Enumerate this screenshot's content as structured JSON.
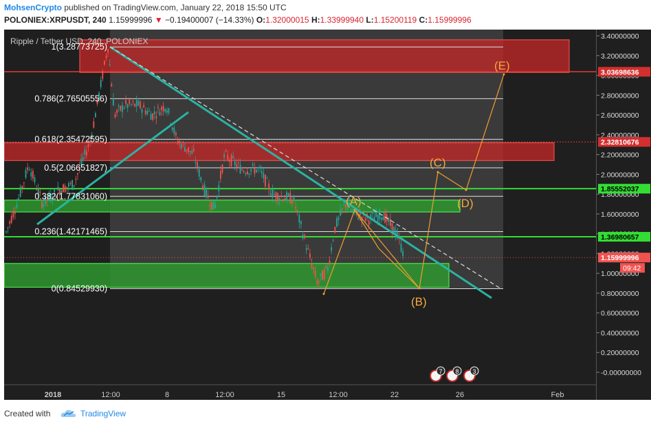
{
  "header": {
    "author": "MohsenCrypto",
    "published": "published on TradingView.com, January 22, 2018 15:50 UTC",
    "symbol": "POLONIEX:XRPUSDT, 240",
    "last": "1.15999996",
    "change": "−0.19400007 (−14.33%)",
    "o_label": "O:",
    "o_value": "1.32000015",
    "h_label": "H:",
    "h_value": "1.33999940",
    "l_label": "L:",
    "l_value": "1.15200119",
    "c_label": "C:",
    "c_value": "1.15999996"
  },
  "chart": {
    "legend": "Ripple / Tether USD, 240, POLONIEX",
    "fib_labels": [
      {
        "label": "1(3.28773725)",
        "price": 3.28773725
      },
      {
        "label": "0.786(2.76505556)",
        "price": 2.76505556
      },
      {
        "label": "0.618(2.35472595)",
        "price": 2.35472595
      },
      {
        "label": "0.5(2.06651827)",
        "price": 2.06651827
      },
      {
        "label": "0.382(1.77831060)",
        "price": 1.7783106
      },
      {
        "label": "0.236(1.42171465)",
        "price": 1.42171465
      },
      {
        "label": "0(0.84529930)",
        "price": 0.8452993
      }
    ],
    "wave_labels": [
      "(A)",
      "(B)",
      "(C)",
      "(D)",
      "(E)"
    ],
    "time_labels": [
      "2018",
      "12:00",
      "8",
      "12:00",
      "15",
      "12:00",
      "22",
      "26",
      "Feb"
    ],
    "event_badges": [
      "7",
      "8",
      "3"
    ],
    "price_ticks": [
      "3.40000000",
      "3.20000000",
      "3.00000000",
      "2.80000000",
      "2.60000000",
      "2.40000000",
      "2.20000000",
      "2.00000000",
      "1.80000000",
      "1.60000000",
      "1.40000000",
      "1.20000000",
      "1.00000000",
      "0.80000000",
      "0.60000000",
      "0.40000000",
      "0.20000000",
      "-0.00000000"
    ],
    "price_tags": [
      {
        "label": "3.03698636",
        "color": "#d32f2f"
      },
      {
        "label": "2.32810676",
        "color": "#d32f2f"
      },
      {
        "label": "1.85552037",
        "color": "#33dd33"
      },
      {
        "label": "1.36980657",
        "color": "#33dd33"
      },
      {
        "label": "1.15999996",
        "color": "#ef5350"
      }
    ],
    "countdown": "09:42",
    "colors": {
      "up": "#26a69a",
      "down": "#ef5350",
      "trend": "#2bb3a3",
      "wave": "#f0a030",
      "red_zone": "#c62828",
      "green_zone": "#2e9d2e"
    }
  },
  "footer": {
    "created": "Created with",
    "brand": "TradingView"
  }
}
